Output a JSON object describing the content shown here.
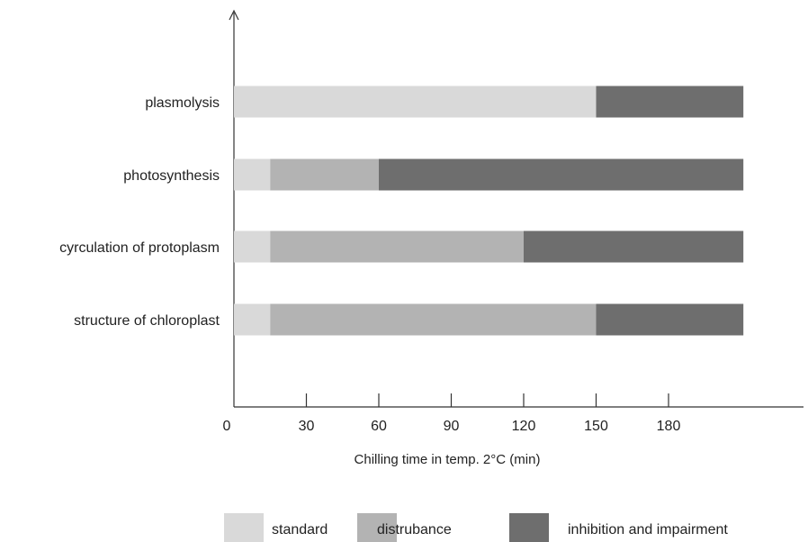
{
  "chart_data": {
    "type": "bar",
    "orientation": "horizontal",
    "stacked": true,
    "categories": [
      "plasmolysis",
      "photosynthesis",
      "cyrculation of protoplasm",
      "structure of chloroplast"
    ],
    "series": [
      {
        "name": "standard",
        "color": "#d9d9d9",
        "values": [
          150,
          15,
          15,
          15
        ]
      },
      {
        "name": "distrubance",
        "color": "#b3b3b3",
        "values": [
          0,
          45,
          105,
          135
        ]
      },
      {
        "name": "inhibition and impairment",
        "color": "#6e6e6e",
        "values": [
          61,
          151,
          91,
          61
        ]
      }
    ],
    "x_ticks": [
      "0",
      "30",
      "60",
      "90",
      "120",
      "150",
      "180"
    ],
    "xlim": [
      0,
      240
    ],
    "xlabel": "Chilling time in temp. 2°C (min)",
    "legend_position": "bottom",
    "grid": false
  }
}
